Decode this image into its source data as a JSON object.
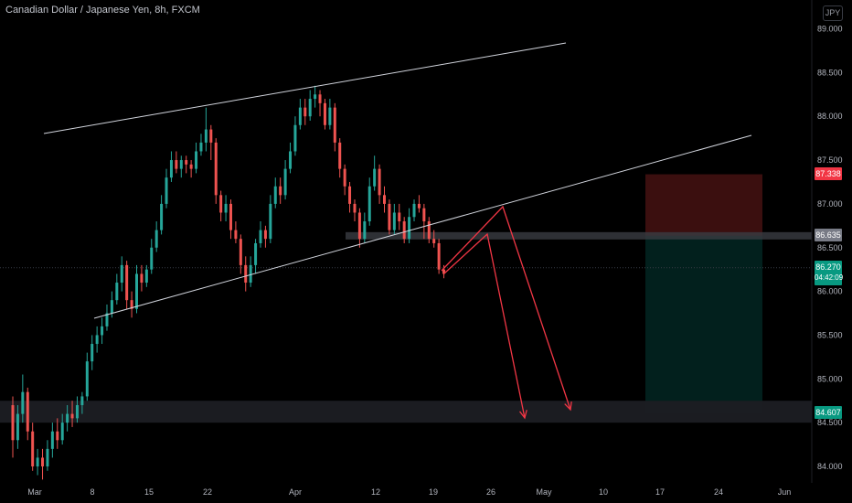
{
  "title": "Canadian Dollar / Japanese Yen, 8h, FXCM",
  "currency_button": "JPY",
  "price_tags": {
    "stop": "87.338",
    "entry": "86.635",
    "last": "86.270",
    "countdown": "04:42:09",
    "target": "84.607"
  },
  "colors": {
    "up": "#26a69a",
    "down": "#ef5350",
    "drawing": "#f23645",
    "trendline": "#d1d4dc",
    "stop_zone": "#3b0f0f",
    "target_zone": "#02201d"
  },
  "chart_data": {
    "type": "candlestick",
    "symbol": "CADJPY",
    "timeframe": "8h",
    "x_tick_labels": [
      "Mar",
      "8",
      "15",
      "22",
      "Apr",
      "12",
      "19",
      "26",
      "May",
      "10",
      "17",
      "24",
      "Jun"
    ],
    "y_tick_labels": [
      "84.000",
      "84.500",
      "85.000",
      "85.500",
      "86.000",
      "86.500",
      "87.000",
      "87.500",
      "88.000",
      "88.500",
      "89.000"
    ],
    "ylim": [
      83.9,
      89.25
    ],
    "grid": false,
    "candles": [
      [
        84.7,
        84.3,
        84.8,
        84.1
      ],
      [
        84.3,
        84.6,
        84.7,
        84.2
      ],
      [
        84.6,
        84.85,
        85.05,
        84.5
      ],
      [
        84.85,
        84.4,
        84.9,
        84.3
      ],
      [
        84.4,
        84.0,
        84.5,
        83.95
      ],
      [
        84.0,
        84.1,
        84.2,
        83.9
      ],
      [
        84.1,
        84.0,
        84.2,
        83.85
      ],
      [
        84.0,
        84.2,
        84.3,
        83.95
      ],
      [
        84.2,
        84.4,
        84.5,
        84.1
      ],
      [
        84.4,
        84.3,
        84.55,
        84.2
      ],
      [
        84.3,
        84.5,
        84.6,
        84.25
      ],
      [
        84.5,
        84.6,
        84.7,
        84.4
      ],
      [
        84.6,
        84.55,
        84.75,
        84.45
      ],
      [
        84.55,
        84.7,
        84.8,
        84.5
      ],
      [
        84.7,
        84.8,
        84.85,
        84.6
      ],
      [
        84.8,
        85.2,
        85.3,
        84.75
      ],
      [
        85.2,
        85.4,
        85.5,
        85.1
      ],
      [
        85.4,
        85.5,
        85.6,
        85.3
      ],
      [
        85.5,
        85.6,
        85.7,
        85.4
      ],
      [
        85.6,
        85.75,
        85.85,
        85.55
      ],
      [
        85.75,
        85.9,
        86.0,
        85.7
      ],
      [
        85.9,
        86.1,
        86.2,
        85.85
      ],
      [
        86.1,
        86.3,
        86.4,
        86.0
      ],
      [
        86.3,
        85.9,
        86.35,
        85.8
      ],
      [
        85.9,
        85.8,
        86.0,
        85.7
      ],
      [
        85.8,
        86.2,
        86.3,
        85.75
      ],
      [
        86.2,
        86.1,
        86.3,
        86.0
      ],
      [
        86.1,
        86.25,
        86.3,
        86.05
      ],
      [
        86.25,
        86.5,
        86.6,
        86.2
      ],
      [
        86.5,
        86.7,
        86.8,
        86.45
      ],
      [
        86.7,
        87.0,
        87.1,
        86.65
      ],
      [
        87.0,
        87.3,
        87.4,
        86.95
      ],
      [
        87.3,
        87.5,
        87.6,
        87.25
      ],
      [
        87.5,
        87.4,
        87.6,
        87.35
      ],
      [
        87.4,
        87.5,
        87.55,
        87.3
      ],
      [
        87.5,
        87.45,
        87.55,
        87.35
      ],
      [
        87.45,
        87.4,
        87.5,
        87.3
      ],
      [
        87.4,
        87.6,
        87.7,
        87.35
      ],
      [
        87.6,
        87.7,
        87.8,
        87.55
      ],
      [
        87.7,
        87.85,
        88.1,
        87.6
      ],
      [
        87.85,
        87.7,
        87.9,
        87.5
      ],
      [
        87.7,
        87.1,
        87.75,
        87.0
      ],
      [
        87.1,
        86.9,
        87.15,
        86.8
      ],
      [
        86.9,
        87.0,
        87.1,
        86.8
      ],
      [
        87.0,
        86.7,
        87.05,
        86.6
      ],
      [
        86.7,
        86.6,
        86.8,
        86.55
      ],
      [
        86.6,
        86.3,
        86.65,
        86.2
      ],
      [
        86.3,
        86.1,
        86.4,
        86.0
      ],
      [
        86.1,
        86.3,
        86.4,
        86.05
      ],
      [
        86.3,
        86.55,
        86.6,
        86.2
      ],
      [
        86.55,
        86.7,
        86.8,
        86.5
      ],
      [
        86.7,
        86.6,
        86.75,
        86.5
      ],
      [
        86.6,
        87.0,
        87.1,
        86.55
      ],
      [
        87.0,
        87.2,
        87.3,
        86.95
      ],
      [
        87.2,
        87.1,
        87.3,
        87.0
      ],
      [
        87.1,
        87.4,
        87.5,
        87.05
      ],
      [
        87.4,
        87.6,
        87.7,
        87.35
      ],
      [
        87.6,
        87.9,
        88.0,
        87.55
      ],
      [
        87.9,
        88.1,
        88.2,
        87.85
      ],
      [
        88.1,
        88.0,
        88.2,
        87.9
      ],
      [
        88.0,
        88.2,
        88.3,
        87.95
      ],
      [
        88.2,
        88.25,
        88.35,
        88.1
      ],
      [
        88.25,
        88.15,
        88.3,
        88.0
      ],
      [
        88.15,
        87.9,
        88.2,
        87.85
      ],
      [
        87.9,
        88.1,
        88.2,
        87.85
      ],
      [
        88.1,
        87.7,
        88.15,
        87.6
      ],
      [
        87.7,
        87.4,
        87.75,
        87.3
      ],
      [
        87.4,
        87.2,
        87.45,
        87.1
      ],
      [
        87.2,
        87.0,
        87.25,
        86.9
      ],
      [
        87.0,
        86.9,
        87.05,
        86.8
      ],
      [
        86.9,
        86.6,
        86.95,
        86.5
      ],
      [
        86.6,
        86.8,
        86.9,
        86.55
      ],
      [
        86.8,
        87.2,
        87.3,
        86.75
      ],
      [
        87.2,
        87.4,
        87.55,
        87.15
      ],
      [
        87.4,
        87.1,
        87.45,
        87.0
      ],
      [
        87.1,
        87.0,
        87.2,
        86.9
      ],
      [
        87.0,
        86.7,
        87.05,
        86.65
      ],
      [
        86.7,
        86.9,
        87.0,
        86.65
      ],
      [
        86.9,
        86.8,
        87.0,
        86.7
      ],
      [
        86.8,
        86.6,
        86.85,
        86.55
      ],
      [
        86.6,
        86.85,
        86.95,
        86.55
      ],
      [
        86.85,
        87.0,
        87.05,
        86.8
      ],
      [
        87.0,
        86.95,
        87.1,
        86.9
      ],
      [
        86.95,
        86.8,
        87.0,
        86.6
      ],
      [
        86.8,
        86.6,
        86.85,
        86.55
      ],
      [
        86.6,
        86.55,
        86.7,
        86.5
      ],
      [
        86.55,
        86.25,
        86.6,
        86.2
      ],
      [
        86.25,
        86.2,
        86.3,
        86.15
      ]
    ],
    "levels": {
      "stop": 87.338,
      "entry": 86.635,
      "last": 86.27,
      "target": 84.607
    },
    "support_zone": [
      84.5,
      84.75
    ],
    "annotations": [
      "rising wedge",
      "projected drop arrows",
      "short position tool"
    ]
  }
}
